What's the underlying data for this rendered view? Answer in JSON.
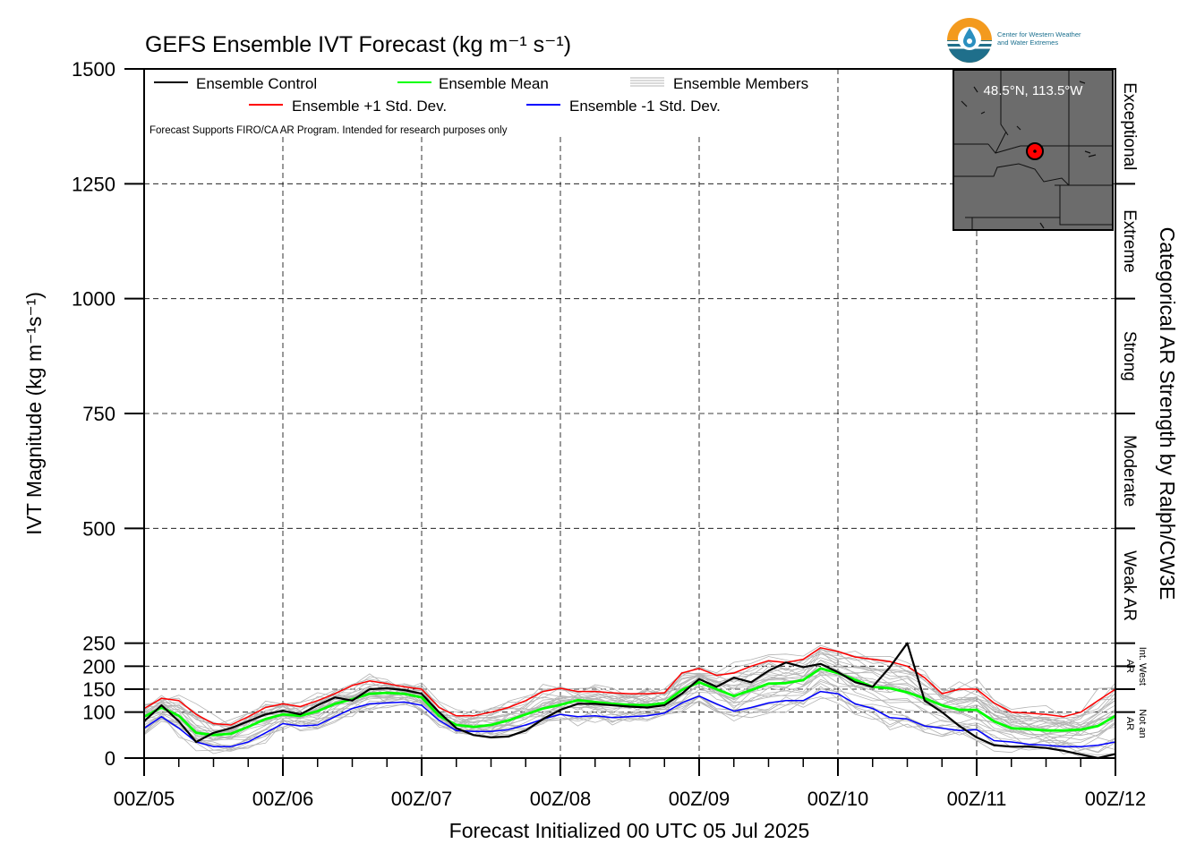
{
  "chart_data": {
    "type": "line",
    "title": "GEFS Ensemble IVT Forecast (kg m⁻¹ s⁻¹)",
    "xlabel": "Forecast Initialized 00 UTC 05 Jul 2025",
    "ylabel": "IVT Magnitude (kg m⁻¹s⁻¹)",
    "right_label": "Categorical AR Strength by Ralph/CW3E",
    "note": "Forecast Supports FIRO/CA AR Program. Intended for research purposes only",
    "ylim": [
      0,
      1500
    ],
    "xlim_hours": [
      0,
      168
    ],
    "x_ticks": [
      "00Z/05",
      "00Z/06",
      "00Z/07",
      "00Z/08",
      "00Z/09",
      "00Z/10",
      "00Z/11",
      "00Z/12"
    ],
    "y_ticks": [
      0,
      100,
      150,
      200,
      250,
      500,
      750,
      1000,
      1250,
      1500
    ],
    "grid": true,
    "legend_position": "top-left",
    "legend": {
      "control": "Ensemble Control",
      "mean": "Ensemble Mean",
      "members": "Ensemble Members",
      "plus_std": "Ensemble +1 Std. Dev.",
      "minus_std": "Ensemble -1 Std. Dev."
    },
    "categories": [
      "Exceptional",
      "Extreme",
      "Strong",
      "Moderate",
      "Weak AR",
      "Int. West AR",
      "Not an AR"
    ],
    "category_bounds": [
      0,
      100,
      150,
      200,
      250,
      500,
      750,
      1000,
      1250,
      1500
    ],
    "series": [
      {
        "name": "Ensemble Control",
        "color": "#000000",
        "x": [
          0,
          3,
          6,
          9,
          12,
          15,
          18,
          21,
          24,
          27,
          30,
          33,
          36,
          39,
          42,
          45,
          48,
          51,
          54,
          57,
          60,
          63,
          66,
          69,
          72,
          75,
          78,
          81,
          84,
          87,
          90,
          93,
          96,
          99,
          102,
          105,
          108,
          111,
          114,
          117,
          120,
          123,
          126,
          129,
          132,
          135,
          138,
          141,
          144,
          147,
          150,
          153,
          156,
          159,
          162,
          165,
          168
        ],
        "y": [
          80,
          115,
          80,
          35,
          55,
          65,
          80,
          95,
          103,
          95,
          115,
          132,
          125,
          150,
          152,
          148,
          140,
          100,
          65,
          50,
          45,
          47,
          60,
          85,
          105,
          118,
          118,
          115,
          112,
          110,
          115,
          140,
          172,
          155,
          175,
          165,
          190,
          208,
          198,
          205,
          187,
          165,
          155,
          198,
          250,
          125,
          100,
          70,
          45,
          28,
          25,
          25,
          22,
          16,
          8,
          0,
          9
        ]
      },
      {
        "name": "Ensemble Mean",
        "color": "#00ff00",
        "x": [
          0,
          3,
          6,
          9,
          12,
          15,
          18,
          21,
          24,
          27,
          30,
          33,
          36,
          39,
          42,
          45,
          48,
          51,
          54,
          57,
          60,
          63,
          66,
          69,
          72,
          75,
          78,
          81,
          84,
          87,
          90,
          93,
          96,
          99,
          102,
          105,
          108,
          111,
          114,
          117,
          120,
          123,
          126,
          129,
          132,
          135,
          138,
          141,
          144,
          147,
          150,
          153,
          156,
          159,
          162,
          165,
          168
        ],
        "y": [
          90,
          110,
          92,
          55,
          50,
          53,
          68,
          85,
          95,
          92,
          102,
          118,
          128,
          140,
          142,
          140,
          132,
          92,
          72,
          68,
          72,
          82,
          95,
          108,
          116,
          126,
          122,
          118,
          116,
          115,
          120,
          148,
          165,
          150,
          135,
          148,
          162,
          163,
          170,
          195,
          185,
          170,
          155,
          152,
          143,
          130,
          115,
          105,
          105,
          80,
          65,
          63,
          60,
          60,
          62,
          70,
          92
        ]
      },
      {
        "name": "Ensemble +1 Std. Dev.",
        "color": "#ff0000",
        "x": [
          0,
          3,
          6,
          9,
          12,
          15,
          18,
          21,
          24,
          27,
          30,
          33,
          36,
          39,
          42,
          45,
          48,
          51,
          54,
          57,
          60,
          63,
          66,
          69,
          72,
          75,
          78,
          81,
          84,
          87,
          90,
          93,
          96,
          99,
          102,
          105,
          108,
          111,
          114,
          117,
          120,
          123,
          126,
          129,
          132,
          135,
          138,
          141,
          144,
          147,
          150,
          153,
          156,
          159,
          162,
          165,
          168
        ],
        "y": [
          108,
          130,
          125,
          95,
          75,
          72,
          90,
          110,
          118,
          112,
          125,
          140,
          158,
          168,
          162,
          155,
          150,
          110,
          92,
          92,
          100,
          110,
          125,
          145,
          152,
          145,
          145,
          142,
          140,
          140,
          142,
          185,
          195,
          180,
          185,
          200,
          212,
          208,
          215,
          240,
          232,
          220,
          215,
          210,
          200,
          175,
          140,
          150,
          150,
          120,
          100,
          98,
          95,
          90,
          100,
          125,
          150
        ]
      },
      {
        "name": "Ensemble -1 Std. Dev.",
        "color": "#0000ff",
        "x": [
          0,
          3,
          6,
          9,
          12,
          15,
          18,
          21,
          24,
          27,
          30,
          33,
          36,
          39,
          42,
          45,
          48,
          51,
          54,
          57,
          60,
          63,
          66,
          69,
          72,
          75,
          78,
          81,
          84,
          87,
          90,
          93,
          96,
          99,
          102,
          105,
          108,
          111,
          114,
          117,
          120,
          123,
          126,
          129,
          132,
          135,
          138,
          141,
          144,
          147,
          150,
          153,
          156,
          159,
          162,
          165,
          168
        ],
        "y": [
          65,
          90,
          65,
          35,
          25,
          25,
          35,
          55,
          75,
          70,
          72,
          90,
          108,
          118,
          120,
          122,
          115,
          82,
          60,
          58,
          58,
          62,
          72,
          85,
          95,
          90,
          92,
          88,
          90,
          92,
          98,
          120,
          135,
          118,
          102,
          110,
          120,
          125,
          125,
          145,
          140,
          118,
          108,
          88,
          85,
          70,
          65,
          60,
          62,
          38,
          35,
          30,
          28,
          25,
          25,
          28,
          35
        ]
      }
    ],
    "members_color": "#b4b4b4"
  },
  "inset": {
    "coordinates": "48.5°N, 113.5°W"
  },
  "logo": {
    "line1": "Center for Western Weather",
    "line2": "and Water Extremes"
  }
}
